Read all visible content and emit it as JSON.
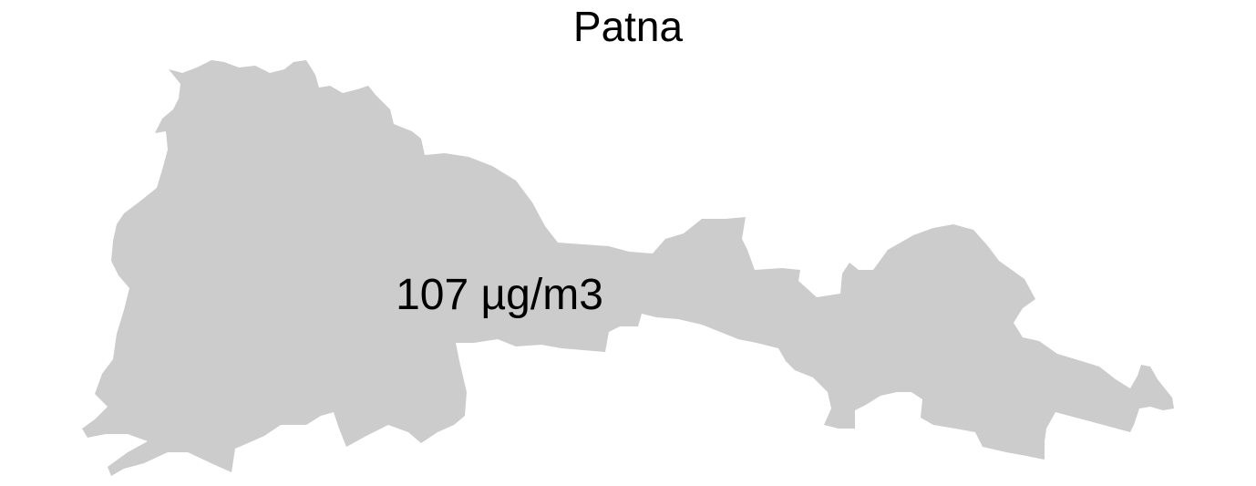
{
  "map": {
    "title": "Patna",
    "region_fill": "#cccccc",
    "background": "#ffffff",
    "value_label": "107 µg/m3"
  }
}
